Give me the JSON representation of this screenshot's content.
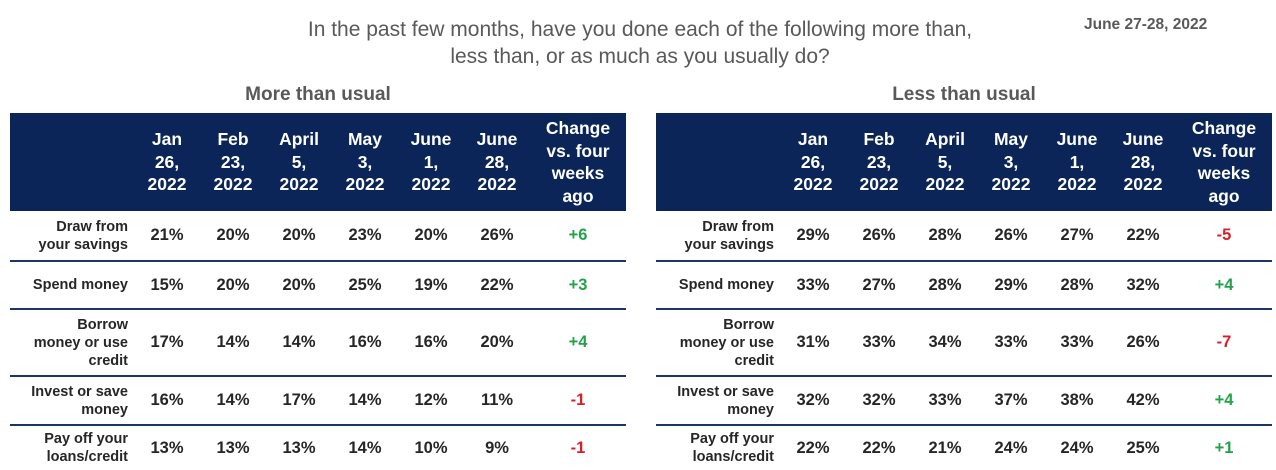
{
  "header": {
    "title_line1": "In the past few months, have you done each of the following more than,",
    "title_line2": "less than, or as much as you usually do?",
    "date": "June 27-28, 2022"
  },
  "columns": [
    [
      "Jan",
      "26,",
      "2022"
    ],
    [
      "Feb",
      "23,",
      "2022"
    ],
    [
      "April",
      "5,",
      "2022"
    ],
    [
      "May",
      "3,",
      "2022"
    ],
    [
      "June",
      "1,",
      "2022"
    ],
    [
      "June",
      "28,",
      "2022"
    ],
    [
      "Change",
      "vs. four",
      "weeks",
      "ago"
    ]
  ],
  "more_than_usual": {
    "title": "More than usual",
    "rows": [
      {
        "label": [
          "Draw from",
          "your savings"
        ],
        "values": [
          "21%",
          "20%",
          "20%",
          "23%",
          "20%",
          "26%"
        ],
        "change": "+6",
        "change_dir": "pos"
      },
      {
        "label": [
          "Spend money"
        ],
        "values": [
          "15%",
          "20%",
          "20%",
          "25%",
          "19%",
          "22%"
        ],
        "change": "+3",
        "change_dir": "pos"
      },
      {
        "label": [
          "Borrow",
          "money or use",
          "credit"
        ],
        "values": [
          "17%",
          "14%",
          "14%",
          "16%",
          "16%",
          "20%"
        ],
        "change": "+4",
        "change_dir": "pos"
      },
      {
        "label": [
          "Invest or save",
          "money"
        ],
        "values": [
          "16%",
          "14%",
          "17%",
          "14%",
          "12%",
          "11%"
        ],
        "change": "-1",
        "change_dir": "neg"
      },
      {
        "label": [
          "Pay off your",
          "loans/credit"
        ],
        "values": [
          "13%",
          "13%",
          "13%",
          "14%",
          "10%",
          "9%"
        ],
        "change": "-1",
        "change_dir": "neg"
      }
    ]
  },
  "less_than_usual": {
    "title": "Less than usual",
    "rows": [
      {
        "label": [
          "Draw from",
          "your savings"
        ],
        "values": [
          "29%",
          "26%",
          "28%",
          "26%",
          "27%",
          "22%"
        ],
        "change": "-5",
        "change_dir": "neg"
      },
      {
        "label": [
          "Spend money"
        ],
        "values": [
          "33%",
          "27%",
          "28%",
          "29%",
          "28%",
          "32%"
        ],
        "change": "+4",
        "change_dir": "pos"
      },
      {
        "label": [
          "Borrow",
          "money or use",
          "credit"
        ],
        "values": [
          "31%",
          "33%",
          "34%",
          "33%",
          "33%",
          "26%"
        ],
        "change": "-7",
        "change_dir": "neg"
      },
      {
        "label": [
          "Invest or save",
          "money"
        ],
        "values": [
          "32%",
          "32%",
          "33%",
          "37%",
          "38%",
          "42%"
        ],
        "change": "+4",
        "change_dir": "pos"
      },
      {
        "label": [
          "Pay off your",
          "loans/credit"
        ],
        "values": [
          "22%",
          "22%",
          "21%",
          "24%",
          "24%",
          "25%"
        ],
        "change": "+1",
        "change_dir": "pos"
      }
    ]
  },
  "colors": {
    "header_bg": "#0b2559",
    "positive": "#22a34a",
    "negative": "#d9202a",
    "title_text": "#595959"
  }
}
